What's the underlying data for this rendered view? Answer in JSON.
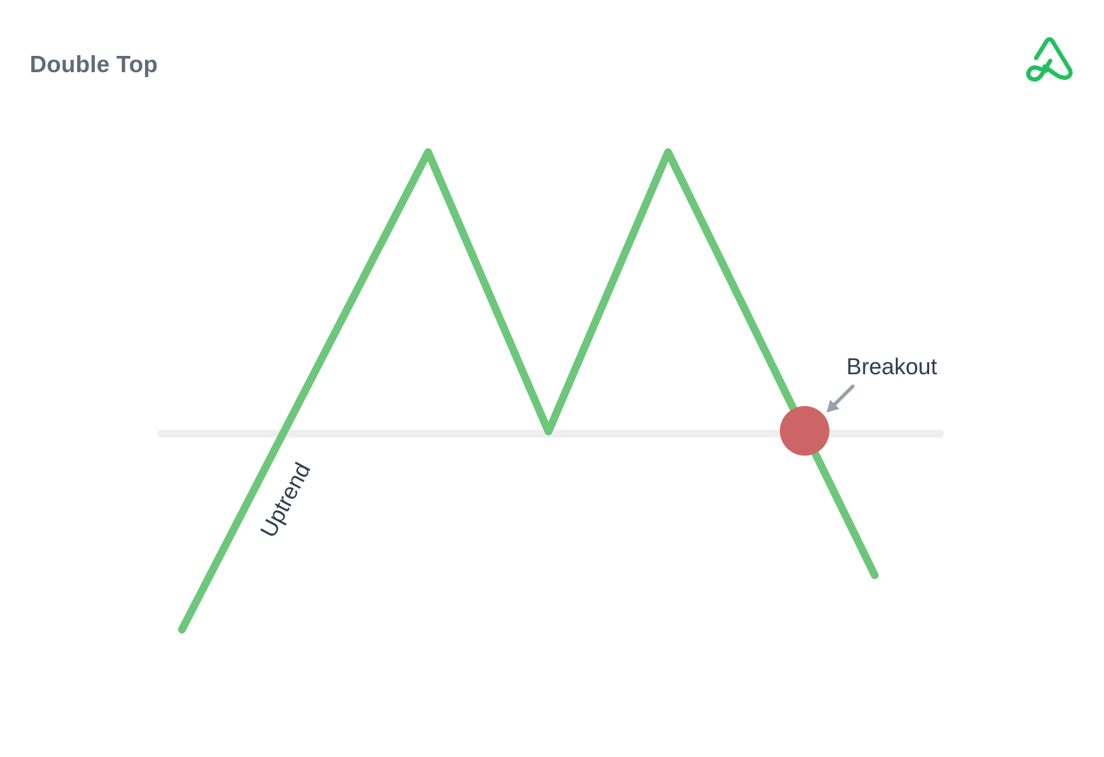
{
  "title": "Double Top",
  "labels": {
    "uptrend": "Uptrend",
    "breakout": "Breakout"
  },
  "icons": {
    "logo": "brand-logo-icon",
    "arrow": "arrow-down-left-icon"
  },
  "colors": {
    "price_line": "#6cc77a",
    "support_line": "#eeeef1",
    "breakout_marker": "#cd6466",
    "arrow": "#9aa1aa",
    "label_text": "#2f3d4e",
    "title_text": "#5f6b78",
    "logo": "#21c05e"
  }
}
